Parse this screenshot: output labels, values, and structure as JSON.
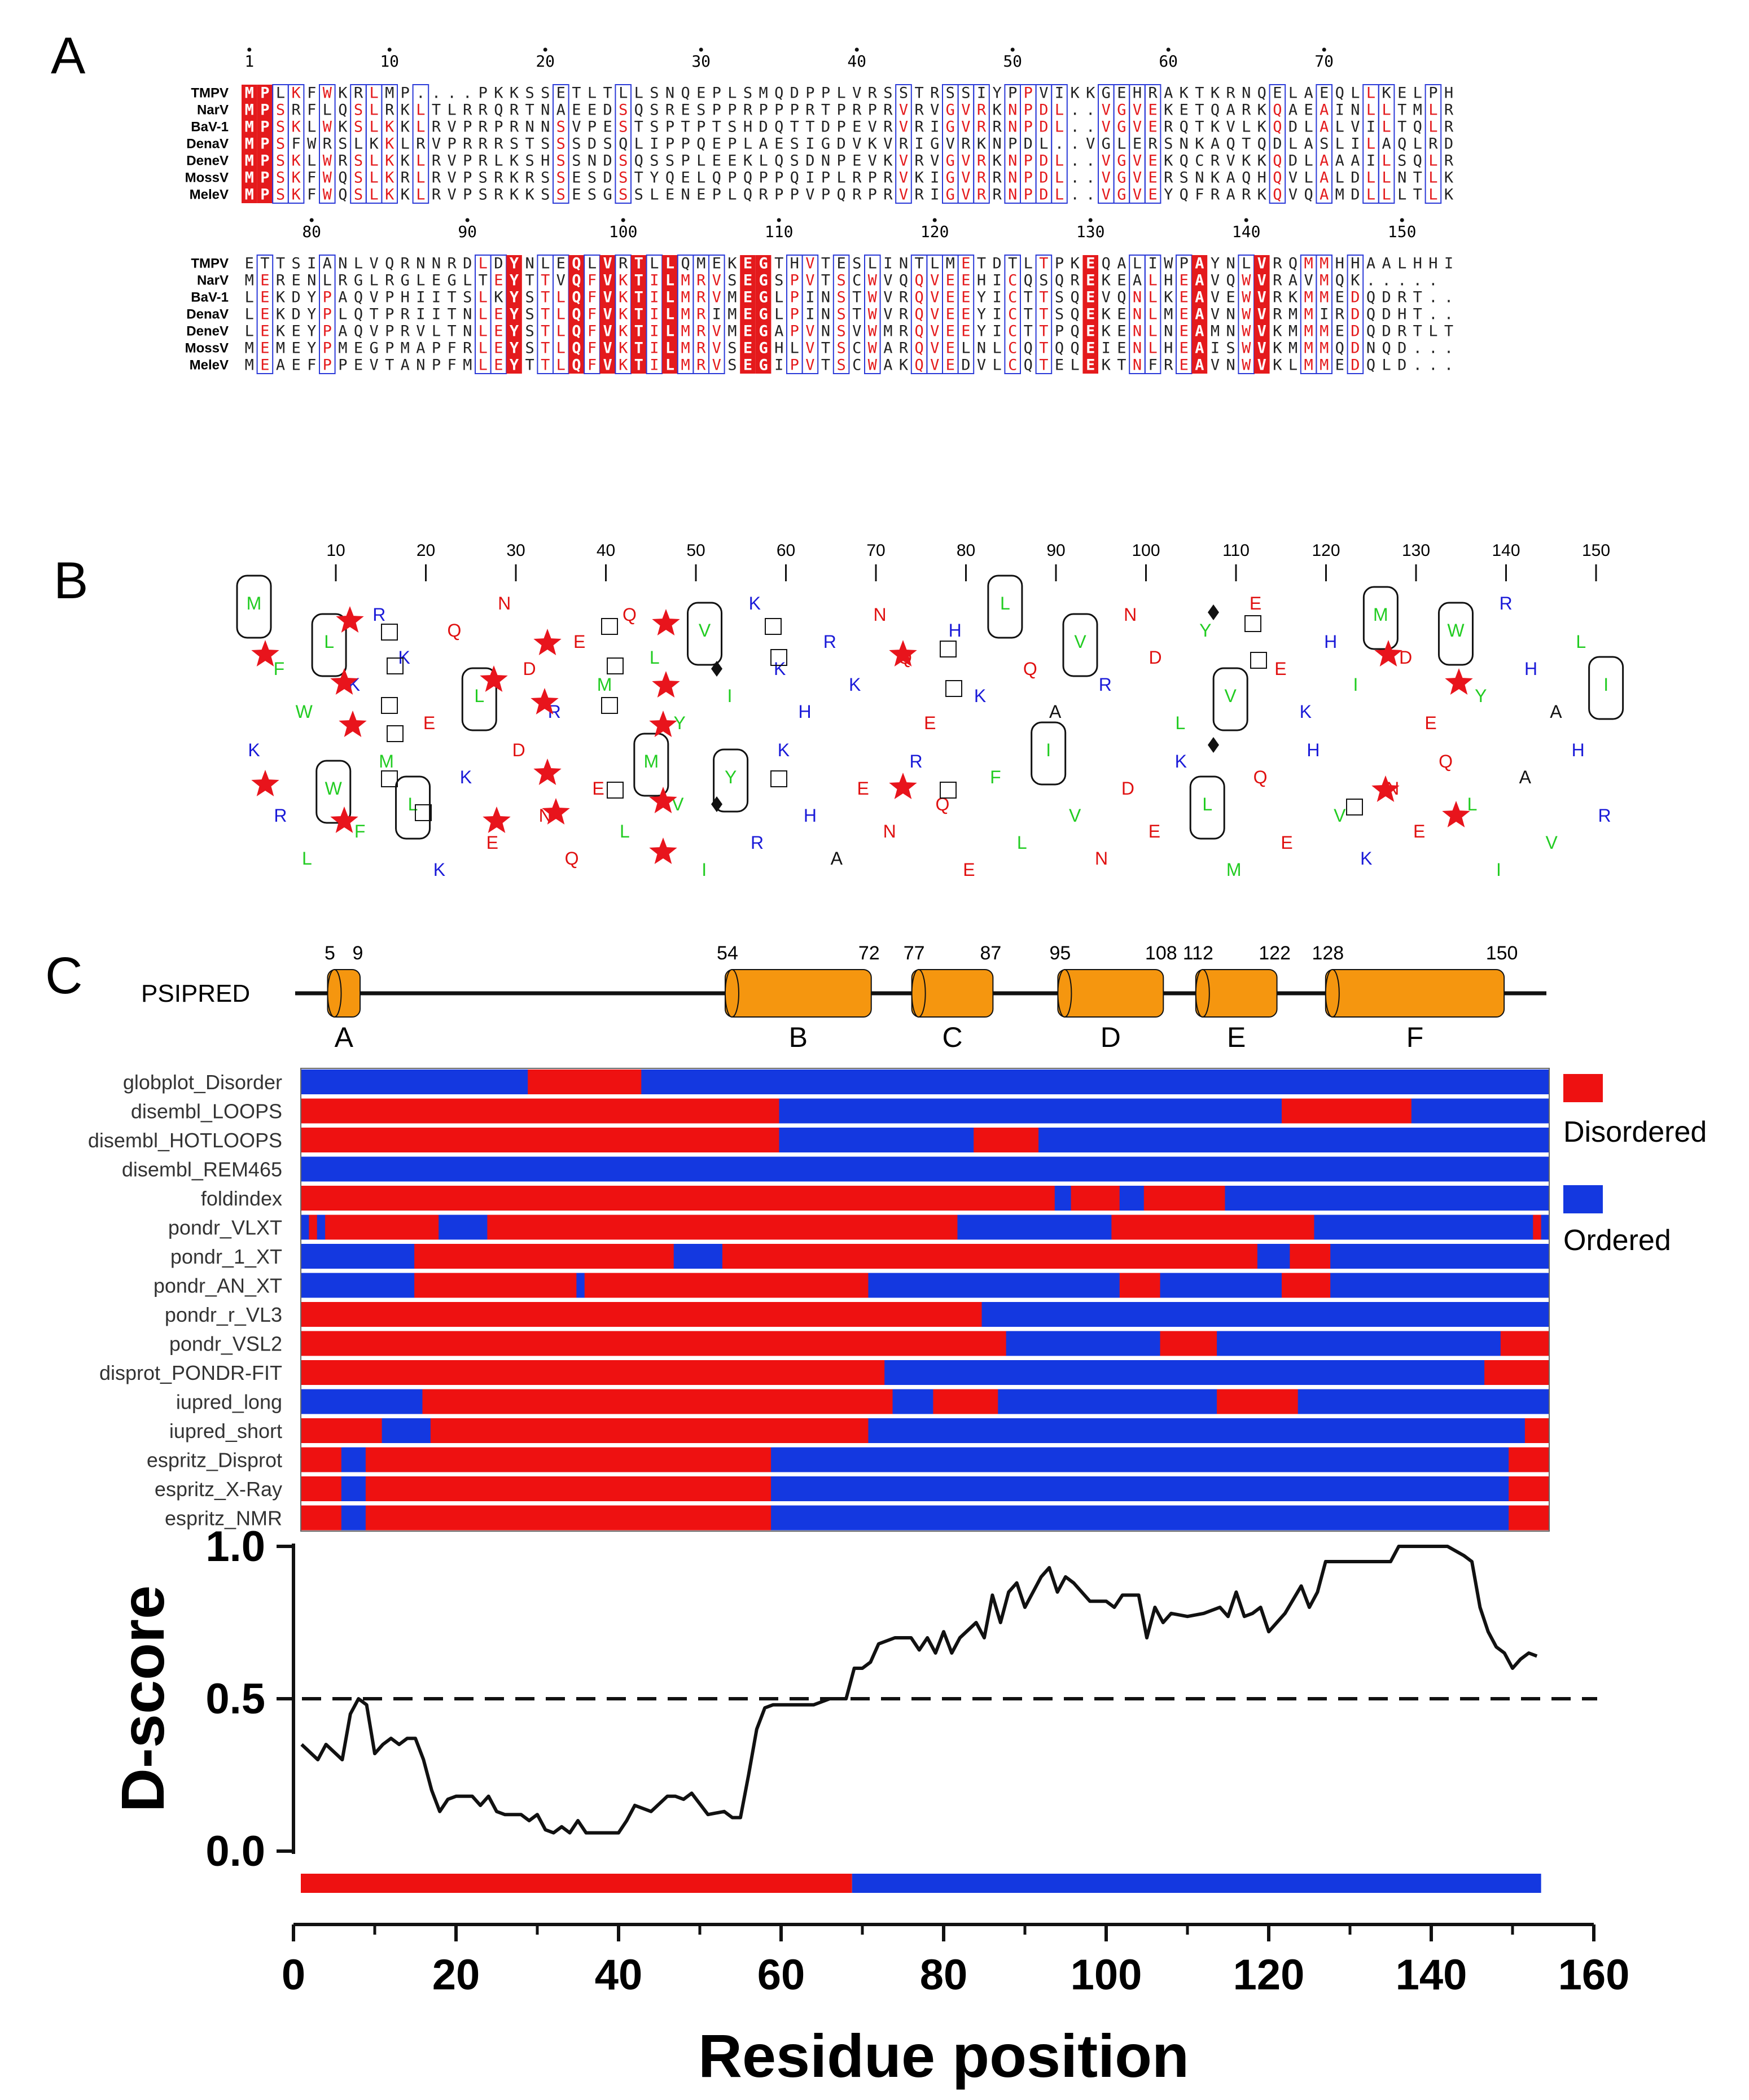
{
  "panel_labels": [
    "A",
    "B",
    "C"
  ],
  "alignment": {
    "blocks": [
      {
        "start": 1,
        "sequences": [
          {
            "name": "TMPV",
            "seq": "MPLKFWKRLMP....PKKSSETLTLLSNQEPLSMQDPPLVRSSTRSSIYPPVIKKGEHRAKTKRNQELAEQLLKELPH"
          },
          {
            "name": "NarV",
            "seq": "MPSRFLQSLRKLTLRRQRTNAEEDSQSRESPPRPPPRTPRPRVRVGVRKNPDL..VGVEKETQARKQAEAINLLTMLRD"
          },
          {
            "name": "BaV-1",
            "seq": "MPSKLWKSLKKLRVPRPRNNSVPESTSPTPTSHDQTTDPEVRVRIGVRRNPDL..VGVERQTKVLKQDLALVILTQLRD"
          },
          {
            "name": "DenaV",
            "seq": "MPSFWRSLKKLRVPRRRSTSSSDSQLIPPQEPLAESIGDVKVRIGVRKNPDL..VGLERSNKAQTQDLASLILAQLRD"
          },
          {
            "name": "DeneV",
            "seq": "MPSKLWRSLKKLRVPRLKSHSSNDSQSSPLEEKLQSDNPEVKVRVGVRKNPDL..VGVEKQCRVKKQDLAAAILSQLRD"
          },
          {
            "name": "MossV",
            "seq": "MPSKFWQSLKRLRVPSRKRSSESDSTYQELQPQPPQIPLRPRVKIGVRRNPDL..VGVERSNKAQHQVLALDLLNTLKE"
          },
          {
            "name": "MeleV",
            "seq": "MPSKFWQSLKKLRVPSRKKSSESGSSLENEPLQRPPVPQRPRVRIGVRRNPDL..VGVEYQFRARKQVQAMDLLLTLKE"
          }
        ]
      },
      {
        "start": 76,
        "sequences": [
          {
            "name": "TMPV",
            "seq": "ETTSIANLVQRNNRDLDYNLEQLVRTLLQMEKEGTHVTESLINTLMETDTLTPKEQALIWPAYNLVRQMMHHAALHHI"
          },
          {
            "name": "NarV",
            "seq": "MERENLRGLRGLEGLTEYTTVQFVKTILMRVSEGSPVTSCWVQQVEEHICQSQREKEALHEAVQWVRAVMQK....."
          },
          {
            "name": "BaV-1",
            "seq": "LEKDYPAQVPHIITSLKYSTLQFVKTILMRVMEGLPINSTWVRQVEEYICTTSQEVQNLKEAVEWVRKMMEDQDRT.."
          },
          {
            "name": "DenaV",
            "seq": "LEKDYPLQTPRIITNLEYSTLQFVKTILMRIMEGLPINSTWVRQVEEYICTTSQEKENLMEAVNWVRMMIRDQDHT.."
          },
          {
            "name": "DeneV",
            "seq": "LEKEYPAQVPRVLTNLEYSTLQFVKTILMRVMEGAPVNSVWMRQVEEYICTTPQEKENLNEAMNWVKMMMEDQDRTLT"
          },
          {
            "name": "MossV",
            "seq": "MEMEYPMEGPMAPFRLEYSTLQFVKTILMRVSEGHLVTSCWARQVELNLCQTQQEIENLHEAISWVKMMMQDNQD..."
          },
          {
            "name": "MeleV",
            "seq": "MEAEFPPEVTANPFMLEYTTLQFVKTILMRVSEGIPVTSCWAKQVEDVLCQTELEKTNFREAVNWVKLMMEDQLD..."
          }
        ]
      }
    ],
    "ruler1": [
      "1",
      "10",
      "20",
      "30",
      "40",
      "50",
      "60",
      "70"
    ],
    "ruler2": [
      "80",
      "90",
      "100",
      "110",
      "120",
      "130",
      "140",
      "150"
    ]
  },
  "wheel": {
    "ticks": [
      "10",
      "20",
      "30",
      "40",
      "50",
      "60",
      "70",
      "80",
      "90",
      "100",
      "110",
      "120",
      "130",
      "140",
      "150"
    ],
    "rows": [
      "MFWLKRKEQLNDREMQLYVIKKHRKNQEHKLQAVRNDLYVEEKHIMDEWYRHALI",
      "KRLWFMLKKEDNQELMVIYRKHAENRQEFLIVNDEKLMQEHVKNEQLIAVHR"
    ],
    "colors": {
      "hydrophobic": "#22cc22",
      "basic": "#1a1ad8",
      "acidic": "#e01010",
      "other": "#111111",
      "star": "#e8141c"
    }
  },
  "psipred": {
    "label": "PSIPRED",
    "helices": [
      {
        "start": 5,
        "end": 9,
        "name": "A"
      },
      {
        "start": 54,
        "end": 72,
        "name": "B"
      },
      {
        "start": 77,
        "end": 87,
        "name": "C"
      },
      {
        "start": 95,
        "end": 108,
        "name": "D"
      },
      {
        "start": 112,
        "end": 122,
        "name": "E"
      },
      {
        "start": 128,
        "end": 150,
        "name": "F"
      }
    ],
    "color": "#f5960f"
  },
  "predictors": {
    "legend": [
      {
        "label": "Disordered",
        "color": "#ee1111"
      },
      {
        "label": "Ordered",
        "color": "#1438e0"
      }
    ],
    "rows": [
      {
        "name": "globplot_Disorder",
        "dis": [
          [
            29,
            43
          ]
        ]
      },
      {
        "name": "disembl_LOOPS",
        "dis": [
          [
            1,
            60
          ],
          [
            122,
            138
          ]
        ]
      },
      {
        "name": "disembl_HOTLOOPS",
        "dis": [
          [
            1,
            60
          ],
          [
            84,
            92
          ]
        ]
      },
      {
        "name": "disembl_REM465",
        "dis": []
      },
      {
        "name": "foldindex",
        "dis": [
          [
            1,
            94
          ],
          [
            96,
            102
          ],
          [
            105,
            115
          ]
        ]
      },
      {
        "name": "pondr_VLXT",
        "dis": [
          [
            2,
            3
          ],
          [
            4,
            18
          ],
          [
            24,
            82
          ],
          [
            101,
            126
          ],
          [
            153,
            154
          ]
        ]
      },
      {
        "name": "pondr_1_XT",
        "dis": [
          [
            15,
            47
          ],
          [
            53,
            119
          ],
          [
            123,
            128
          ]
        ]
      },
      {
        "name": "pondr_AN_XT",
        "dis": [
          [
            15,
            35
          ],
          [
            36,
            71
          ],
          [
            102,
            107
          ],
          [
            122,
            128
          ]
        ]
      },
      {
        "name": "pondr_r_VL3",
        "dis": [
          [
            1,
            85
          ]
        ]
      },
      {
        "name": "pondr_VSL2",
        "dis": [
          [
            1,
            88
          ],
          [
            107,
            114
          ],
          [
            149,
            155
          ]
        ]
      },
      {
        "name": "disprot_PONDR-FIT",
        "dis": [
          [
            1,
            73
          ],
          [
            147,
            155
          ]
        ]
      },
      {
        "name": "iupred_long",
        "dis": [
          [
            16,
            74
          ],
          [
            79,
            87
          ],
          [
            114,
            124
          ]
        ]
      },
      {
        "name": "iupred_short",
        "dis": [
          [
            1,
            11
          ],
          [
            17,
            71
          ],
          [
            152,
            155
          ]
        ]
      },
      {
        "name": "espritz_Disprot",
        "dis": [
          [
            1,
            6
          ],
          [
            9,
            59
          ],
          [
            150,
            155
          ]
        ]
      },
      {
        "name": "espritz_X-Ray",
        "dis": [
          [
            1,
            6
          ],
          [
            9,
            59
          ],
          [
            150,
            155
          ]
        ]
      },
      {
        "name": "espritz_NMR",
        "dis": [
          [
            1,
            6
          ],
          [
            9,
            59
          ],
          [
            150,
            155
          ]
        ]
      }
    ]
  },
  "chart_data": {
    "type": "line",
    "xlabel": "Residue position",
    "ylabel": "D-score",
    "xlim": [
      0,
      160
    ],
    "ylim": [
      0.0,
      1.0
    ],
    "xticks": [
      "0",
      "20",
      "40",
      "60",
      "80",
      "100",
      "120",
      "140",
      "160"
    ],
    "yticks": [
      "0.0",
      "0.5",
      "1.0"
    ],
    "threshold": 0.5,
    "x": [
      1,
      3,
      4,
      6,
      7,
      8,
      9,
      10,
      11,
      12,
      13,
      14,
      15,
      16,
      17,
      18,
      19,
      20,
      22,
      23,
      24,
      25,
      26,
      27,
      28,
      29,
      30,
      31,
      32,
      33,
      34,
      35,
      36,
      37,
      38,
      40,
      41,
      42,
      44,
      46,
      47,
      48,
      49,
      51,
      53,
      54,
      55,
      56,
      57,
      58,
      59,
      60,
      62,
      64,
      66,
      68,
      69,
      70,
      71,
      72,
      74,
      76,
      77,
      78,
      79,
      80,
      81,
      82,
      84,
      85,
      86,
      87,
      88,
      89,
      90,
      92,
      93,
      94,
      95,
      96,
      98,
      100,
      101,
      102,
      104,
      105,
      106,
      107,
      108,
      110,
      112,
      114,
      115,
      116,
      117,
      118,
      119,
      120,
      121,
      122,
      124,
      125,
      126,
      127,
      128,
      130,
      132,
      134,
      135,
      136,
      138,
      140,
      142,
      144,
      145,
      146,
      147,
      148,
      149,
      150,
      151,
      152,
      153
    ],
    "y": [
      0.35,
      0.3,
      0.35,
      0.3,
      0.45,
      0.5,
      0.48,
      0.32,
      0.35,
      0.37,
      0.35,
      0.37,
      0.37,
      0.3,
      0.2,
      0.13,
      0.17,
      0.18,
      0.18,
      0.15,
      0.18,
      0.13,
      0.12,
      0.12,
      0.12,
      0.1,
      0.12,
      0.07,
      0.06,
      0.08,
      0.06,
      0.1,
      0.06,
      0.06,
      0.06,
      0.06,
      0.1,
      0.15,
      0.13,
      0.18,
      0.18,
      0.17,
      0.19,
      0.12,
      0.13,
      0.11,
      0.11,
      0.25,
      0.4,
      0.47,
      0.48,
      0.48,
      0.48,
      0.48,
      0.5,
      0.5,
      0.6,
      0.6,
      0.62,
      0.68,
      0.7,
      0.7,
      0.66,
      0.7,
      0.65,
      0.72,
      0.65,
      0.7,
      0.75,
      0.7,
      0.84,
      0.75,
      0.85,
      0.88,
      0.8,
      0.9,
      0.93,
      0.85,
      0.9,
      0.88,
      0.82,
      0.82,
      0.8,
      0.84,
      0.84,
      0.7,
      0.8,
      0.75,
      0.78,
      0.77,
      0.78,
      0.8,
      0.77,
      0.85,
      0.77,
      0.78,
      0.8,
      0.72,
      0.75,
      0.78,
      0.87,
      0.8,
      0.85,
      0.95,
      0.95,
      0.95,
      0.95,
      0.95,
      0.95,
      1.0,
      1.0,
      1.0,
      1.0,
      0.97,
      0.95,
      0.8,
      0.72,
      0.67,
      0.65,
      0.6,
      0.63,
      0.65,
      0.64
    ],
    "bottom_bar": [
      {
        "from": 1,
        "to": 69,
        "color": "#ee1111"
      },
      {
        "from": 69,
        "to": 154,
        "color": "#1438e0"
      }
    ]
  }
}
